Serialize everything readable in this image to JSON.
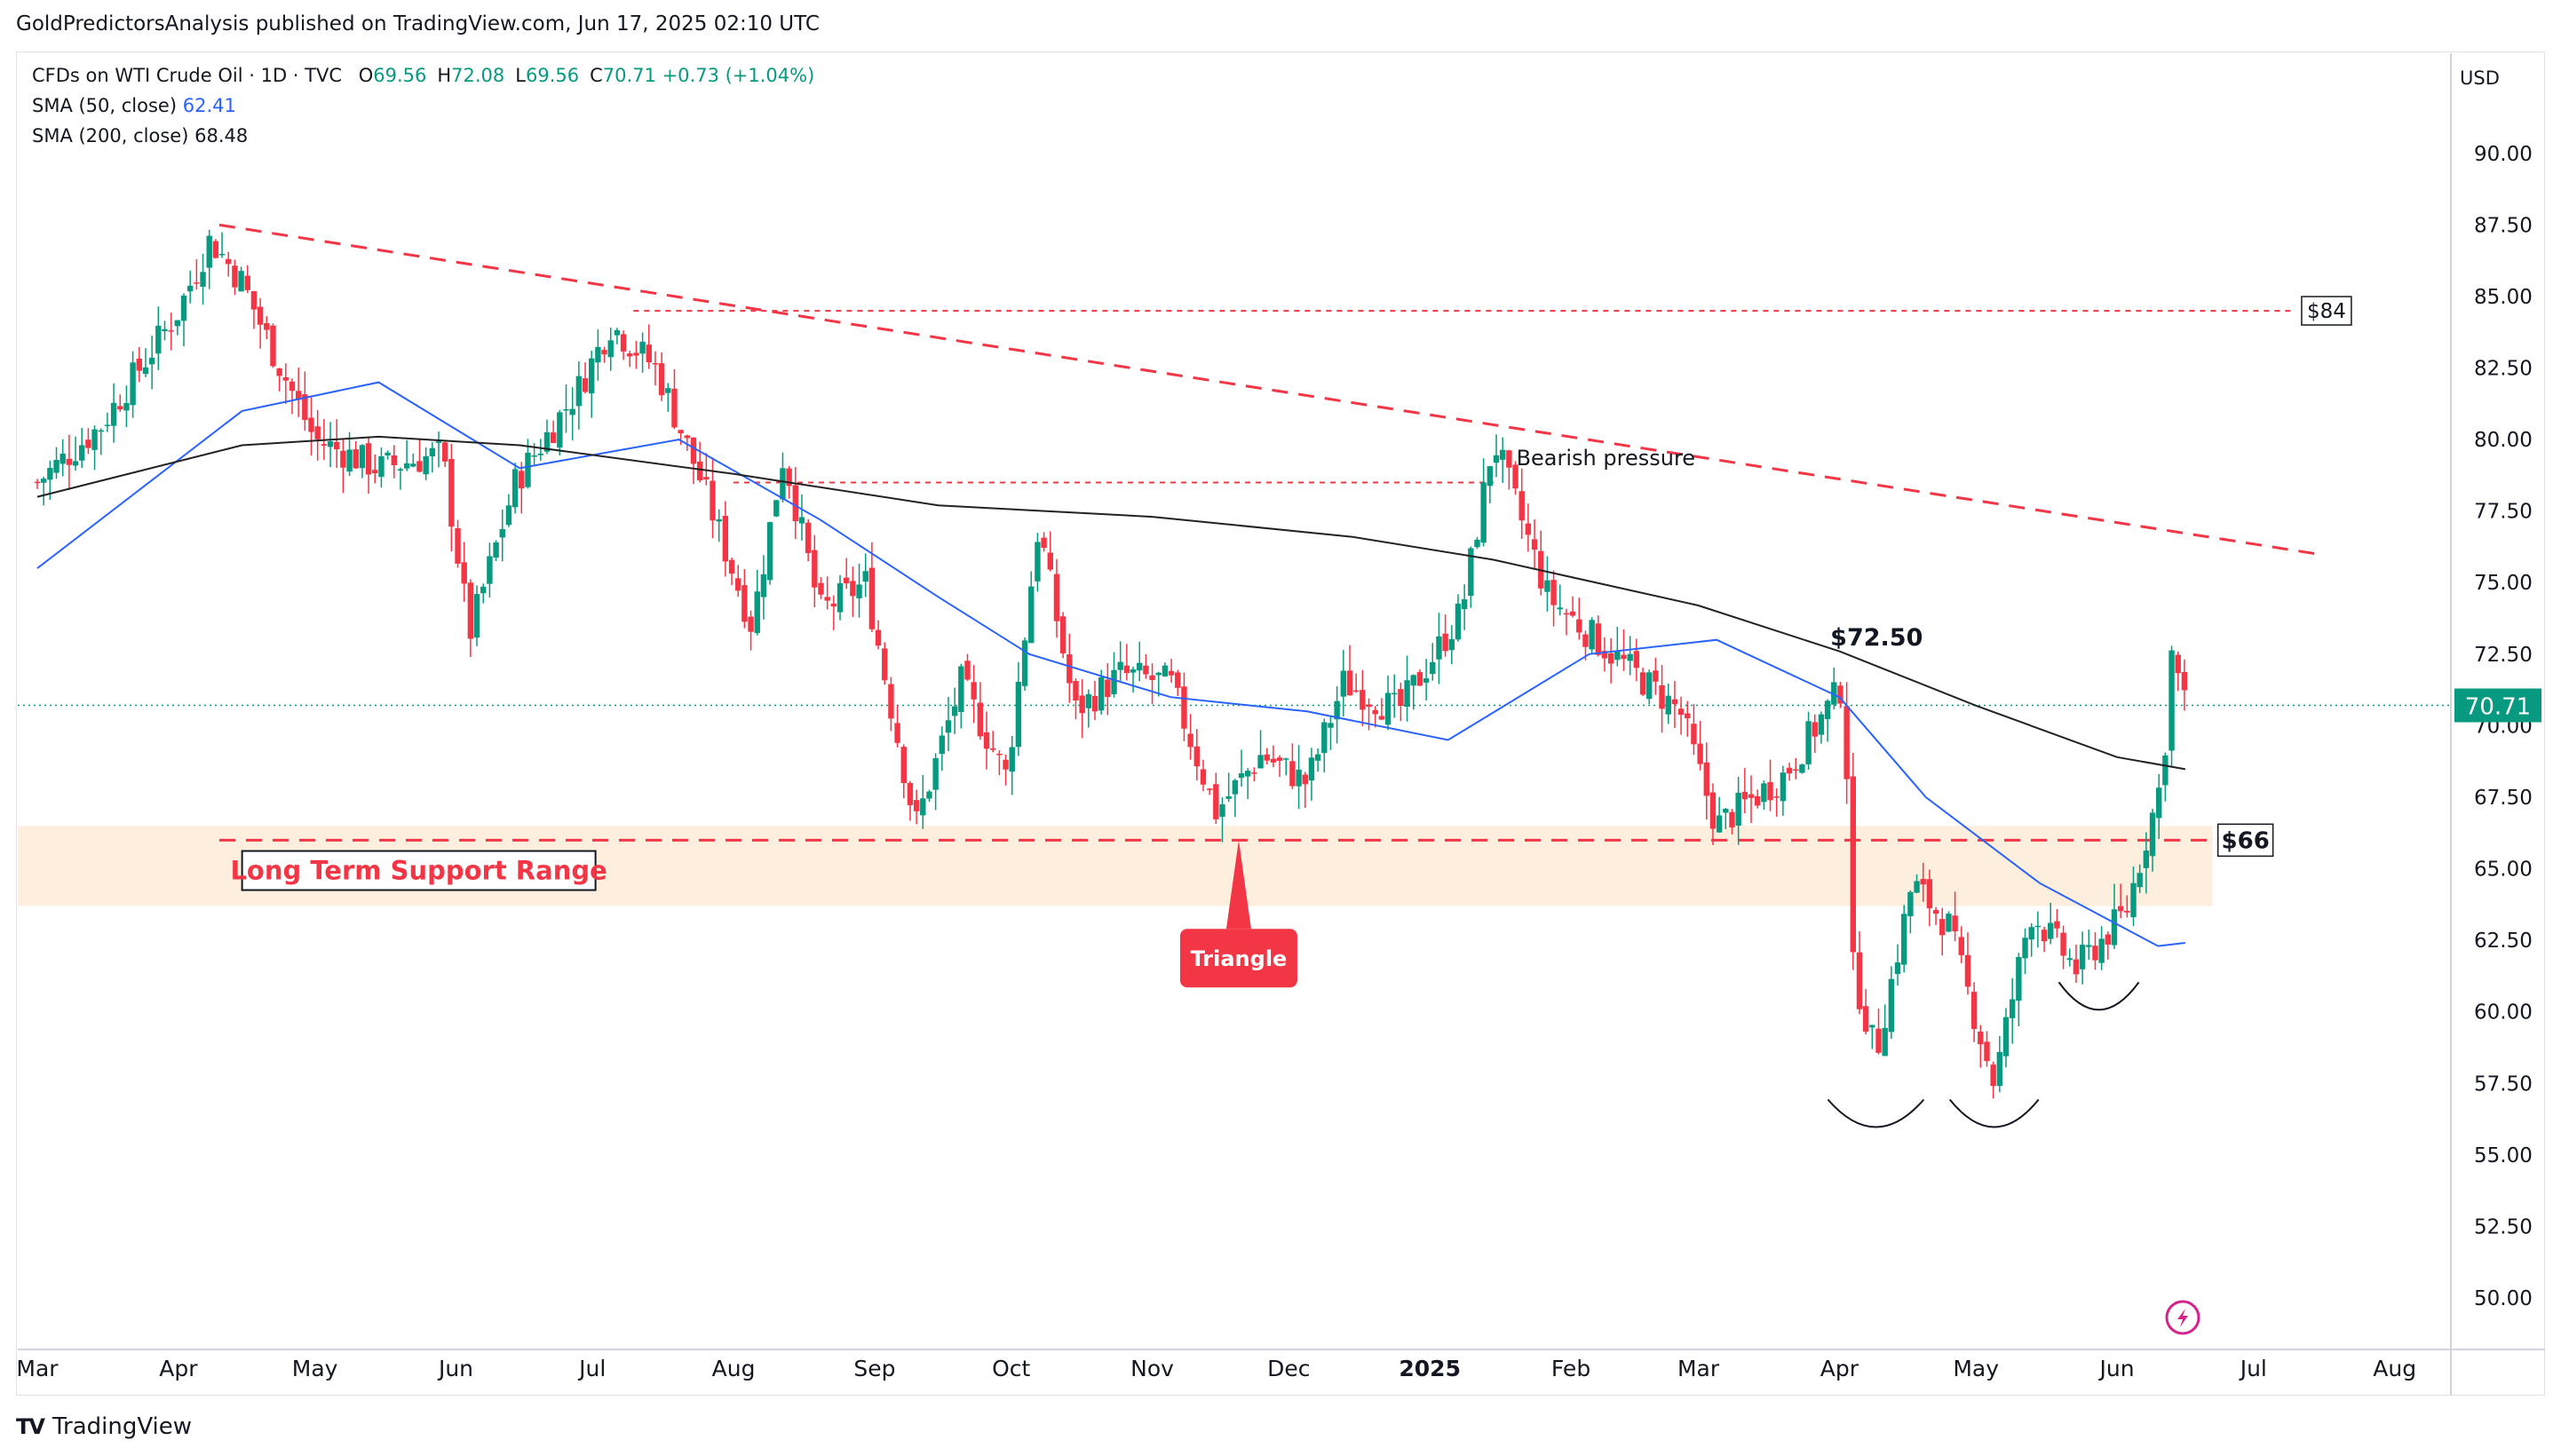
{
  "publisher_line": "GoldPredictorsAnalysis published on TradingView.com, Jun 17, 2025 02:10 UTC",
  "legend": {
    "symbol": "CFDs on WTI Crude Oil · 1D · TVC",
    "ohlc": [
      {
        "k": "O",
        "v": "69.56"
      },
      {
        "k": "H",
        "v": "72.08"
      },
      {
        "k": "L",
        "v": "69.56"
      },
      {
        "k": "C",
        "v": "70.71"
      }
    ],
    "change": "+0.73 (+1.04%)",
    "sma50_label": "SMA (50, close)",
    "sma50_value": "62.41",
    "sma200_label": "SMA (200, close)",
    "sma200_value": "68.48"
  },
  "currency": "USD",
  "footer_brand": "TradingView",
  "colors": {
    "up": "#089981",
    "down": "#f23645",
    "dashed": "#f23645",
    "sma50": "#2962ff",
    "sma200": "#222222",
    "zone": "#fdeede",
    "price_tag": "#089981"
  },
  "chart_data": {
    "type": "candlestick",
    "title": "",
    "x_axis_labels": [
      "Mar",
      "Apr",
      "May",
      "Jun",
      "Jul",
      "Aug",
      "Sep",
      "Oct",
      "Nov",
      "Dec",
      "2025",
      "Feb",
      "Mar",
      "Apr",
      "May",
      "Jun",
      "Jul",
      "Aug"
    ],
    "y_ticks": [
      "90.00",
      "87.50",
      "85.00",
      "82.50",
      "80.00",
      "77.50",
      "75.00",
      "72.50",
      "70.00",
      "67.50",
      "65.00",
      "62.50",
      "60.00",
      "57.50",
      "55.00",
      "52.50",
      "50.00"
    ],
    "ylim": [
      48.2,
      93.5
    ],
    "last_price": "70.71",
    "price_series": [
      [
        "2024-03-01",
        78.5
      ],
      [
        "2024-03-15",
        80.5
      ],
      [
        "2024-04-01",
        84.5
      ],
      [
        "2024-04-08",
        87.0
      ],
      [
        "2024-04-15",
        85.5
      ],
      [
        "2024-04-22",
        83.0
      ],
      [
        "2024-05-01",
        80.0
      ],
      [
        "2024-05-15",
        79.0
      ],
      [
        "2024-05-29",
        79.5
      ],
      [
        "2024-06-04",
        73.2
      ],
      [
        "2024-06-14",
        78.5
      ],
      [
        "2024-06-28",
        81.8
      ],
      [
        "2024-07-05",
        84.0
      ],
      [
        "2024-07-15",
        82.5
      ],
      [
        "2024-07-25",
        78.5
      ],
      [
        "2024-08-05",
        73.5
      ],
      [
        "2024-08-12",
        79.5
      ],
      [
        "2024-08-20",
        74.0
      ],
      [
        "2024-08-30",
        75.0
      ],
      [
        "2024-09-10",
        66.5
      ],
      [
        "2024-09-20",
        71.5
      ],
      [
        "2024-09-30",
        68.2
      ],
      [
        "2024-10-07",
        77.0
      ],
      [
        "2024-10-15",
        70.5
      ],
      [
        "2024-10-25",
        71.8
      ],
      [
        "2024-11-05",
        71.5
      ],
      [
        "2024-11-15",
        67.0
      ],
      [
        "2024-11-25",
        69.0
      ],
      [
        "2024-12-05",
        68.0
      ],
      [
        "2024-12-13",
        71.5
      ],
      [
        "2024-12-25",
        70.5
      ],
      [
        "2025-01-08",
        74.0
      ],
      [
        "2025-01-15",
        80.0
      ],
      [
        "2025-01-27",
        74.5
      ],
      [
        "2025-02-10",
        72.5
      ],
      [
        "2025-02-25",
        70.5
      ],
      [
        "2025-03-05",
        66.5
      ],
      [
        "2025-03-20",
        68.3
      ],
      [
        "2025-04-02",
        71.5
      ],
      [
        "2025-04-04",
        61.5
      ],
      [
        "2025-04-09",
        58.5
      ],
      [
        "2025-04-17",
        64.5
      ],
      [
        "2025-04-25",
        63.0
      ],
      [
        "2025-05-05",
        57.5
      ],
      [
        "2025-05-13",
        63.5
      ],
      [
        "2025-05-23",
        61.5
      ],
      [
        "2025-06-03",
        63.5
      ],
      [
        "2025-06-11",
        68.2
      ],
      [
        "2025-06-13",
        72.5
      ],
      [
        "2025-06-16",
        70.71
      ]
    ],
    "series": [
      {
        "name": "SMA (50, close)",
        "values": [
          [
            "2024-03-01",
            75.5
          ],
          [
            "2024-04-15",
            81.0
          ],
          [
            "2024-05-15",
            82.0
          ],
          [
            "2024-06-15",
            79.0
          ],
          [
            "2024-07-20",
            80.0
          ],
          [
            "2024-08-20",
            77.2
          ],
          [
            "2024-09-15",
            74.5
          ],
          [
            "2024-10-05",
            72.5
          ],
          [
            "2024-11-05",
            71.0
          ],
          [
            "2024-12-05",
            70.5
          ],
          [
            "2025-01-05",
            69.5
          ],
          [
            "2025-02-05",
            72.5
          ],
          [
            "2025-03-05",
            73.0
          ],
          [
            "2025-04-01",
            71.0
          ],
          [
            "2025-04-20",
            67.5
          ],
          [
            "2025-05-15",
            64.5
          ],
          [
            "2025-06-10",
            62.3
          ],
          [
            "2025-06-16",
            62.41
          ]
        ]
      },
      {
        "name": "SMA (200, close)",
        "values": [
          [
            "2024-03-01",
            78.0
          ],
          [
            "2024-04-15",
            79.8
          ],
          [
            "2024-05-15",
            80.1
          ],
          [
            "2024-06-15",
            79.8
          ],
          [
            "2024-08-01",
            78.8
          ],
          [
            "2024-09-15",
            77.7
          ],
          [
            "2024-11-01",
            77.3
          ],
          [
            "2024-12-15",
            76.6
          ],
          [
            "2025-01-15",
            75.8
          ],
          [
            "2025-03-01",
            74.2
          ],
          [
            "2025-04-01",
            72.6
          ],
          [
            "2025-05-01",
            70.7
          ],
          [
            "2025-06-01",
            68.9
          ],
          [
            "2025-06-16",
            68.48
          ]
        ]
      }
    ],
    "annotations": {
      "descending_trendline": {
        "start": [
          "2024-04-10",
          87.5
        ],
        "end": [
          "2025-07-15",
          76.0
        ]
      },
      "resistance_84": {
        "value": 84.5,
        "from": "2024-07-10",
        "label": "$84"
      },
      "resistance_78_5": {
        "value": 78.5,
        "from": "2024-08-01",
        "to": "2025-01-15"
      },
      "support_66": {
        "value": 66.0,
        "from": "2024-04-10",
        "label": "$66"
      },
      "support_zone": {
        "low": 63.7,
        "high": 66.5,
        "label": "Long Term Support Range"
      },
      "triangle_label": "Triangle",
      "bearish_label": "Bearish pressure",
      "price_label_72_5": "$72.50",
      "bottom_arcs": [
        "2025-04-09",
        "2025-05-05",
        "2025-05-28"
      ]
    }
  }
}
